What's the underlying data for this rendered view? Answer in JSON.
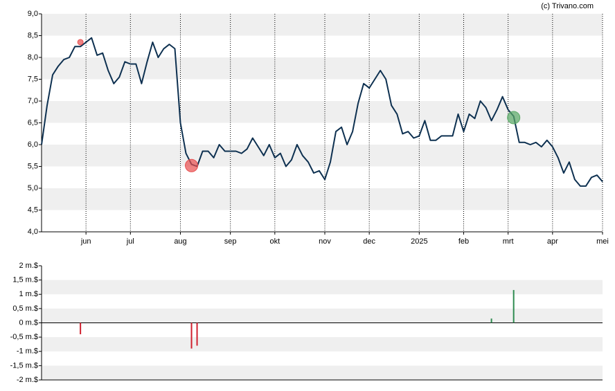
{
  "source": "(c) Trivano.com",
  "chart_data": [
    {
      "type": "line",
      "grid": true,
      "band_color": "#efefef",
      "categories": [
        null,
        null,
        null,
        null,
        null,
        null,
        null,
        null,
        "jun",
        null,
        null,
        null,
        null,
        null,
        null,
        null,
        "jul",
        null,
        null,
        null,
        null,
        null,
        null,
        null,
        null,
        "aug",
        null,
        null,
        null,
        null,
        null,
        null,
        null,
        null,
        "sep",
        null,
        null,
        null,
        null,
        null,
        null,
        null,
        "okt",
        null,
        null,
        null,
        null,
        null,
        null,
        null,
        null,
        "nov",
        null,
        null,
        null,
        null,
        null,
        null,
        null,
        "dec",
        null,
        null,
        null,
        null,
        null,
        null,
        null,
        null,
        "2025",
        null,
        null,
        null,
        null,
        null,
        null,
        null,
        "feb",
        null,
        null,
        null,
        null,
        null,
        null,
        null,
        "mrt",
        null,
        null,
        null,
        null,
        null,
        null,
        null,
        "apr",
        null,
        null,
        null,
        null,
        null,
        null,
        null,
        null,
        "mei"
      ],
      "ylim": [
        4,
        9
      ],
      "yticks": [
        {
          "value": 4,
          "label": "4,0"
        },
        {
          "value": 4.5,
          "label": "4,5"
        },
        {
          "value": 5,
          "label": "5,0"
        },
        {
          "value": 5.5,
          "label": "5,5"
        },
        {
          "value": 6,
          "label": "6,0"
        },
        {
          "value": 6.5,
          "label": "6,5"
        },
        {
          "value": 7,
          "label": "7,0"
        },
        {
          "value": 7.5,
          "label": "7,5"
        },
        {
          "value": 8,
          "label": "8,0"
        },
        {
          "value": 8.5,
          "label": "8,5"
        },
        {
          "value": 9,
          "label": "9,0"
        }
      ],
      "series": [
        {
          "color": "#0d3050",
          "values": [
            6.0,
            6.9,
            7.6,
            7.8,
            7.95,
            8.0,
            8.25,
            8.25,
            8.35,
            8.45,
            8.05,
            8.1,
            7.7,
            7.4,
            7.55,
            7.9,
            7.85,
            7.85,
            7.4,
            7.9,
            8.35,
            8.0,
            8.2,
            8.3,
            8.2,
            6.5,
            5.8,
            5.55,
            5.5,
            5.85,
            5.85,
            5.7,
            6.0,
            5.85,
            5.85,
            5.85,
            5.8,
            5.9,
            6.15,
            5.95,
            5.75,
            6.0,
            5.7,
            5.8,
            5.5,
            5.65,
            6.0,
            5.75,
            5.6,
            5.35,
            5.4,
            5.2,
            5.6,
            6.3,
            6.4,
            6.0,
            6.3,
            6.95,
            7.4,
            7.3,
            7.5,
            7.7,
            7.5,
            6.9,
            6.7,
            6.25,
            6.3,
            6.15,
            6.2,
            6.55,
            6.1,
            6.1,
            6.2,
            6.2,
            6.2,
            6.7,
            6.3,
            6.7,
            6.6,
            7.0,
            6.85,
            6.55,
            6.8,
            7.1,
            6.8,
            6.65,
            6.05,
            6.05,
            6.0,
            6.05,
            5.95,
            6.1,
            5.95,
            5.7,
            5.35,
            5.6,
            5.2,
            5.05,
            5.05,
            5.25,
            5.3,
            5.15
          ]
        },
        {
          "color": "#e84f4f",
          "marker": true,
          "values": [
            null,
            null,
            null,
            null,
            null,
            null,
            null,
            8.35,
            null,
            null,
            null,
            null,
            null,
            null,
            null,
            null,
            null,
            null,
            null,
            null,
            null,
            null,
            null,
            null,
            null,
            null,
            null,
            5.52,
            null,
            null,
            null,
            null,
            null,
            null,
            null,
            null,
            null,
            null,
            null,
            null,
            null,
            null,
            null,
            null,
            null,
            null,
            null,
            null,
            null,
            null,
            null,
            null,
            null,
            null,
            null,
            null,
            null,
            null,
            null,
            null,
            null,
            null,
            null,
            null,
            null,
            null,
            null,
            null,
            null,
            null,
            null,
            null,
            null,
            null,
            null,
            null,
            null,
            null,
            null,
            null,
            null,
            null,
            null,
            null,
            null,
            null,
            null,
            null,
            null,
            null,
            null,
            null,
            null,
            null,
            null,
            null,
            null,
            null,
            null,
            null,
            null,
            null
          ]
        },
        {
          "color": "#5aaa66",
          "marker": true,
          "values": [
            null,
            null,
            null,
            null,
            null,
            null,
            null,
            null,
            null,
            null,
            null,
            null,
            null,
            null,
            null,
            null,
            null,
            null,
            null,
            null,
            null,
            null,
            null,
            null,
            null,
            null,
            null,
            null,
            null,
            null,
            null,
            null,
            null,
            null,
            null,
            null,
            null,
            null,
            null,
            null,
            null,
            null,
            null,
            null,
            null,
            null,
            null,
            null,
            null,
            null,
            null,
            null,
            null,
            null,
            null,
            null,
            null,
            null,
            null,
            null,
            null,
            null,
            null,
            null,
            null,
            null,
            null,
            null,
            null,
            null,
            null,
            null,
            null,
            null,
            null,
            null,
            null,
            null,
            null,
            null,
            null,
            null,
            null,
            null,
            null,
            6.62,
            null,
            null,
            null,
            null,
            null,
            null,
            null,
            null,
            null,
            null,
            null,
            null,
            null,
            null,
            null,
            null
          ]
        }
      ]
    },
    {
      "type": "bar",
      "grid": true,
      "band_color": "#efefef",
      "ylim": [
        -2,
        2
      ],
      "yticks": [
        {
          "value": -2,
          "label": "-2 m.$"
        },
        {
          "value": -1.5,
          "label": "-1,5 m.$"
        },
        {
          "value": -1,
          "label": "-1 m.$"
        },
        {
          "value": -0.5,
          "label": "-0,5 m.$"
        },
        {
          "value": 0,
          "label": "0 m.$"
        },
        {
          "value": 0.5,
          "label": "0,5 m.$"
        },
        {
          "value": 1,
          "label": "1 m.$"
        },
        {
          "value": 1.5,
          "label": "1,5 m.$"
        },
        {
          "value": 2,
          "label": "2 m.$"
        }
      ],
      "series": [
        {
          "color": "#d0202e",
          "values": [
            null,
            null,
            null,
            null,
            null,
            null,
            null,
            -0.4,
            null,
            null,
            null,
            null,
            null,
            null,
            null,
            null,
            null,
            null,
            null,
            null,
            null,
            null,
            null,
            null,
            null,
            null,
            null,
            -0.9,
            -0.8,
            null,
            null,
            null,
            null,
            null,
            null,
            null,
            null,
            null,
            null,
            null,
            null,
            null,
            null,
            null,
            null,
            null,
            null,
            null,
            null,
            null,
            null,
            null,
            null,
            null,
            null,
            null,
            null,
            null,
            null,
            null,
            null,
            null,
            null,
            null,
            null,
            null,
            null,
            null,
            null,
            null,
            null,
            null,
            null,
            null,
            null,
            null,
            null,
            null,
            null,
            null,
            null,
            null,
            null,
            null,
            null,
            null,
            null,
            null,
            null,
            null,
            null,
            null,
            null,
            null,
            null,
            null,
            null,
            null,
            null,
            null,
            null,
            null
          ]
        },
        {
          "color": "#2e8b50",
          "values": [
            null,
            null,
            null,
            null,
            null,
            null,
            null,
            null,
            null,
            null,
            null,
            null,
            null,
            null,
            null,
            null,
            null,
            null,
            null,
            null,
            null,
            null,
            null,
            null,
            null,
            null,
            null,
            null,
            null,
            null,
            null,
            null,
            null,
            null,
            null,
            null,
            null,
            null,
            null,
            null,
            null,
            null,
            null,
            null,
            null,
            null,
            null,
            null,
            null,
            null,
            null,
            null,
            null,
            null,
            null,
            null,
            null,
            null,
            null,
            null,
            null,
            null,
            null,
            null,
            null,
            null,
            null,
            null,
            null,
            null,
            null,
            null,
            null,
            null,
            null,
            null,
            null,
            null,
            null,
            null,
            null,
            0.15,
            null,
            null,
            null,
            1.15,
            null,
            null,
            null,
            null,
            null,
            null,
            null,
            null,
            null,
            null,
            null,
            null,
            null,
            null,
            null,
            null
          ]
        }
      ]
    }
  ]
}
